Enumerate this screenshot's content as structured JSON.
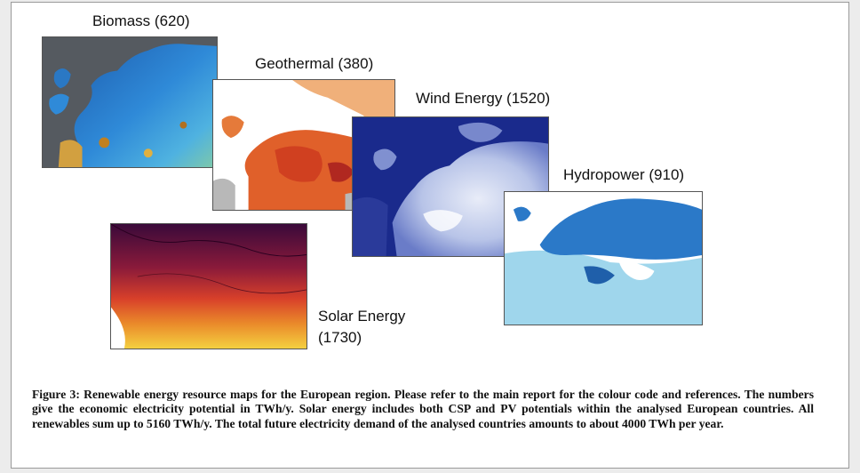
{
  "figure": {
    "panels": {
      "biomass": {
        "label": "Biomass (620)"
      },
      "geothermal": {
        "label": "Geothermal (380)"
      },
      "wind": {
        "label": "Wind Energy (1520)"
      },
      "hydropower": {
        "label": "Hydropower (910)"
      },
      "solar": {
        "label_line1": "Solar Energy",
        "label_line2": "(1730)"
      }
    },
    "caption": "Figure 3: Renewable energy resource maps for the European region. Please refer to the main report for the colour code and references. The numbers give the economic electricity potential in TWh/y. Solar energy includes both CSP and PV potentials within the analysed European countries. All renewables sum up to 5160 TWh/y. The total future electricity demand of the analysed countries amounts to about 4000 TWh per year."
  },
  "colors": {
    "biomass_bg": "#555a60",
    "biomass_land": "#2d7fd0",
    "geothermal_land": "#e0602a",
    "wind_sea": "#1a2a8c",
    "hydro_land": "#2b79c8",
    "hydro_sea": "#9fd6ec",
    "solar_dark": "#3a0a3a",
    "solar_light": "#f0c23a"
  }
}
